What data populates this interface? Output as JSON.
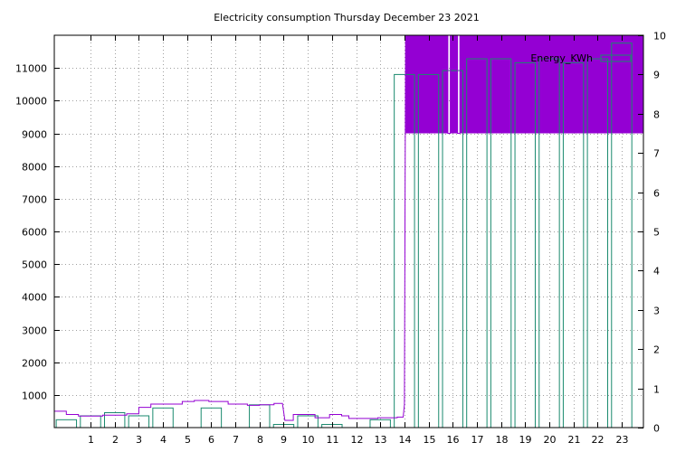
{
  "chart_data": {
    "type": "bar",
    "title": "Electricity consumption Thursday December 23 2021",
    "legend": {
      "label": "Energy_KWh",
      "placement": "top-right"
    },
    "grid": true,
    "colors": {
      "bars": "#1a8a6e",
      "power": "#9400d3",
      "grid": "#a0a0a0",
      "axis": "#000000"
    },
    "x": {
      "range": [
        -0.5,
        23.9
      ],
      "ticks": [
        1,
        2,
        3,
        4,
        5,
        6,
        7,
        8,
        9,
        10,
        11,
        12,
        13,
        14,
        15,
        16,
        17,
        18,
        19,
        20,
        21,
        22,
        23
      ]
    },
    "y_left": {
      "range": [
        0,
        12000
      ],
      "ticks": [
        1000,
        2000,
        3000,
        4000,
        5000,
        6000,
        7000,
        8000,
        9000,
        10000,
        11000
      ]
    },
    "y_right": {
      "range": [
        0,
        10
      ],
      "ticks": [
        0,
        1,
        2,
        3,
        4,
        5,
        6,
        7,
        8,
        9,
        10
      ]
    },
    "series": [
      {
        "name": "Energy_KWh",
        "axis": "right",
        "style": "boxes",
        "hours": [
          0,
          1,
          2,
          3,
          4,
          5,
          6,
          7,
          8,
          9,
          10,
          11,
          12,
          13,
          14,
          15,
          16,
          17,
          18,
          19,
          20,
          21,
          22,
          23
        ],
        "values": [
          0.2,
          0.3,
          0.38,
          0.3,
          0.5,
          0,
          0.5,
          0,
          0.58,
          0.08,
          0.3,
          0.08,
          0,
          0.2,
          9.0,
          9.0,
          9.1,
          9.4,
          9.4,
          9.3,
          9.4,
          9.3,
          9.4,
          9.8
        ]
      },
      {
        "axis": "left",
        "style": "steps",
        "points": [
          [
            -0.5,
            500
          ],
          [
            0.0,
            500
          ],
          [
            0.0,
            400
          ],
          [
            0.5,
            400
          ],
          [
            0.5,
            350
          ],
          [
            1.5,
            350
          ],
          [
            1.5,
            380
          ],
          [
            2.5,
            380
          ],
          [
            2.5,
            420
          ],
          [
            3.0,
            420
          ],
          [
            3.0,
            620
          ],
          [
            3.5,
            620
          ],
          [
            3.5,
            720
          ],
          [
            4.8,
            720
          ],
          [
            4.8,
            800
          ],
          [
            5.3,
            800
          ],
          [
            5.3,
            830
          ],
          [
            5.9,
            830
          ],
          [
            5.9,
            800
          ],
          [
            6.7,
            800
          ],
          [
            6.7,
            720
          ],
          [
            7.5,
            720
          ],
          [
            7.5,
            680
          ],
          [
            8.0,
            680
          ],
          [
            8.0,
            700
          ],
          [
            8.6,
            700
          ],
          [
            8.6,
            740
          ],
          [
            8.95,
            740
          ],
          [
            9.05,
            220
          ],
          [
            9.4,
            220
          ],
          [
            9.4,
            400
          ],
          [
            10.3,
            400
          ],
          [
            10.3,
            300
          ],
          [
            10.9,
            300
          ],
          [
            10.9,
            400
          ],
          [
            11.4,
            400
          ],
          [
            11.4,
            360
          ],
          [
            11.7,
            360
          ],
          [
            11.7,
            280
          ],
          [
            12.9,
            280
          ],
          [
            12.9,
            300
          ],
          [
            13.7,
            300
          ],
          [
            13.7,
            320
          ],
          [
            13.95,
            320
          ],
          [
            14.0,
            700
          ],
          [
            14.05,
            12500
          ],
          [
            15.8,
            12500
          ],
          [
            15.8,
            9000
          ],
          [
            15.9,
            9000
          ],
          [
            15.9,
            12500
          ],
          [
            16.2,
            12500
          ],
          [
            16.2,
            9000
          ],
          [
            16.3,
            9000
          ],
          [
            16.3,
            12500
          ],
          [
            23.9,
            12500
          ]
        ],
        "fill_above": 9000
      }
    ]
  }
}
